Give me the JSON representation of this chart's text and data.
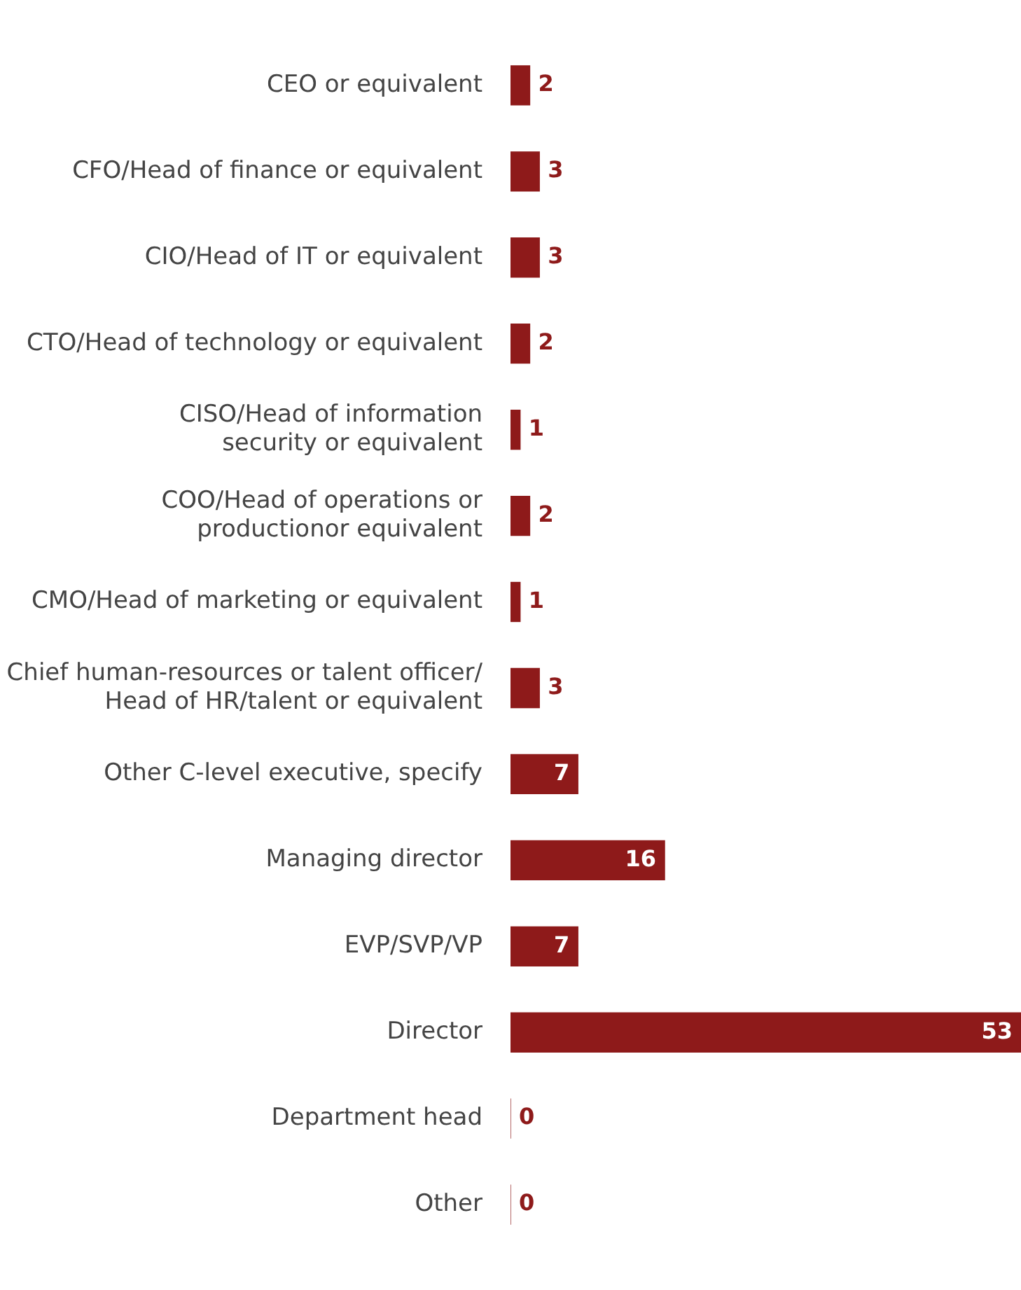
{
  "chart_data": {
    "type": "bar",
    "orientation": "horizontal",
    "data_labels": true,
    "grid": false,
    "legend": false,
    "categories": [
      "CEO or equivalent",
      "CFO/Head of finance or equivalent",
      "CIO/Head of IT or equivalent",
      "CTO/Head of technology or equivalent",
      "CISO/Head of information\nsecurity or equivalent",
      "COO/Head of operations or\nproductionor equivalent",
      "CMO/Head of marketing or equivalent",
      "Chief human-resources or talent officer/\nHead of HR/talent or equivalent",
      "Other C-level executive, specify",
      "Managing director",
      "EVP/SVP/VP",
      "Director",
      "Department head",
      "Other"
    ],
    "values": [
      2,
      3,
      3,
      2,
      1,
      2,
      1,
      3,
      7,
      16,
      7,
      53,
      0,
      0
    ],
    "color": "#8e1a1a"
  }
}
